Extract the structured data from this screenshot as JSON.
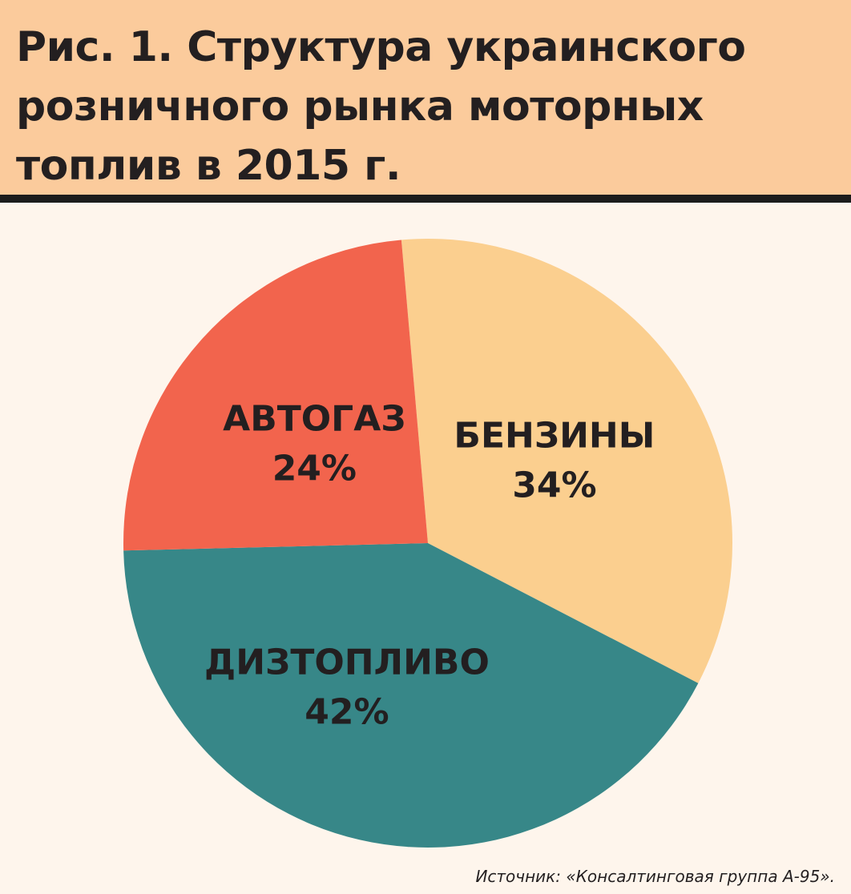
{
  "header": {
    "title": "Рис. 1. Структура украинского розничного рынка моторных топлив в 2015 г."
  },
  "chart_data": {
    "type": "pie",
    "title": "Рис. 1. Структура украинского розничного рынка моторных топлив в 2015 г.",
    "slices": [
      {
        "label": "БЕНЗИНЫ",
        "value": 34,
        "value_label": "34%",
        "color": "#fbcf8f"
      },
      {
        "label": "ДИЗТОПЛИВО",
        "value": 42,
        "value_label": "42%",
        "color": "#378788"
      },
      {
        "label": "АВТОГАЗ",
        "value": 24,
        "value_label": "24%",
        "color": "#f2644d"
      }
    ],
    "start_angle_deg": -5,
    "direction": "clockwise"
  },
  "footer": {
    "source": "Источник: «Консалтинговая группа А-95»."
  }
}
